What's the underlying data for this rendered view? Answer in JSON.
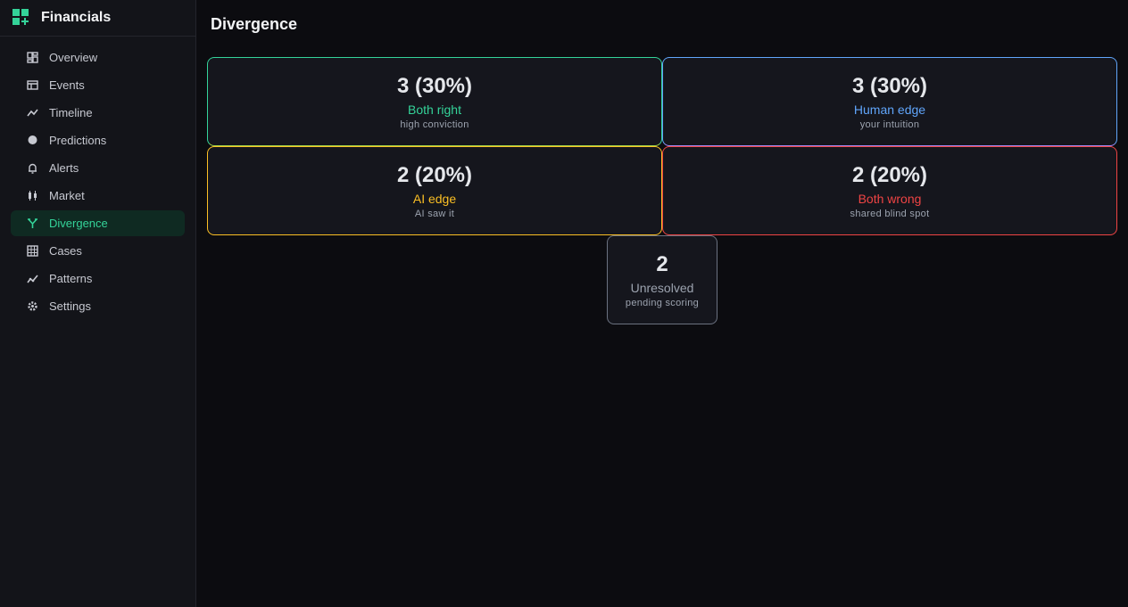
{
  "sidebar": {
    "brand": "Financials",
    "nav": [
      "Overview",
      "Events",
      "Timeline",
      "Predictions",
      "Alerts",
      "Market",
      "Divergence",
      "Cases",
      "Patterns",
      "Settings"
    ]
  },
  "header": {
    "title": "Divergence"
  },
  "cards": [
    {
      "value": "3 (30%)",
      "label": "Both right",
      "sub": "high conviction"
    },
    {
      "value": "3 (30%)",
      "label": "Human edge",
      "sub": "your intuition"
    },
    {
      "value": "2 (20%)",
      "label": "AI edge",
      "sub": "AI saw it"
    },
    {
      "value": "2 (20%)",
      "label": "Both wrong",
      "sub": "shared blind spot"
    },
    {
      "value": "2",
      "label": "Unresolved",
      "sub": "pending scoring"
    }
  ]
}
